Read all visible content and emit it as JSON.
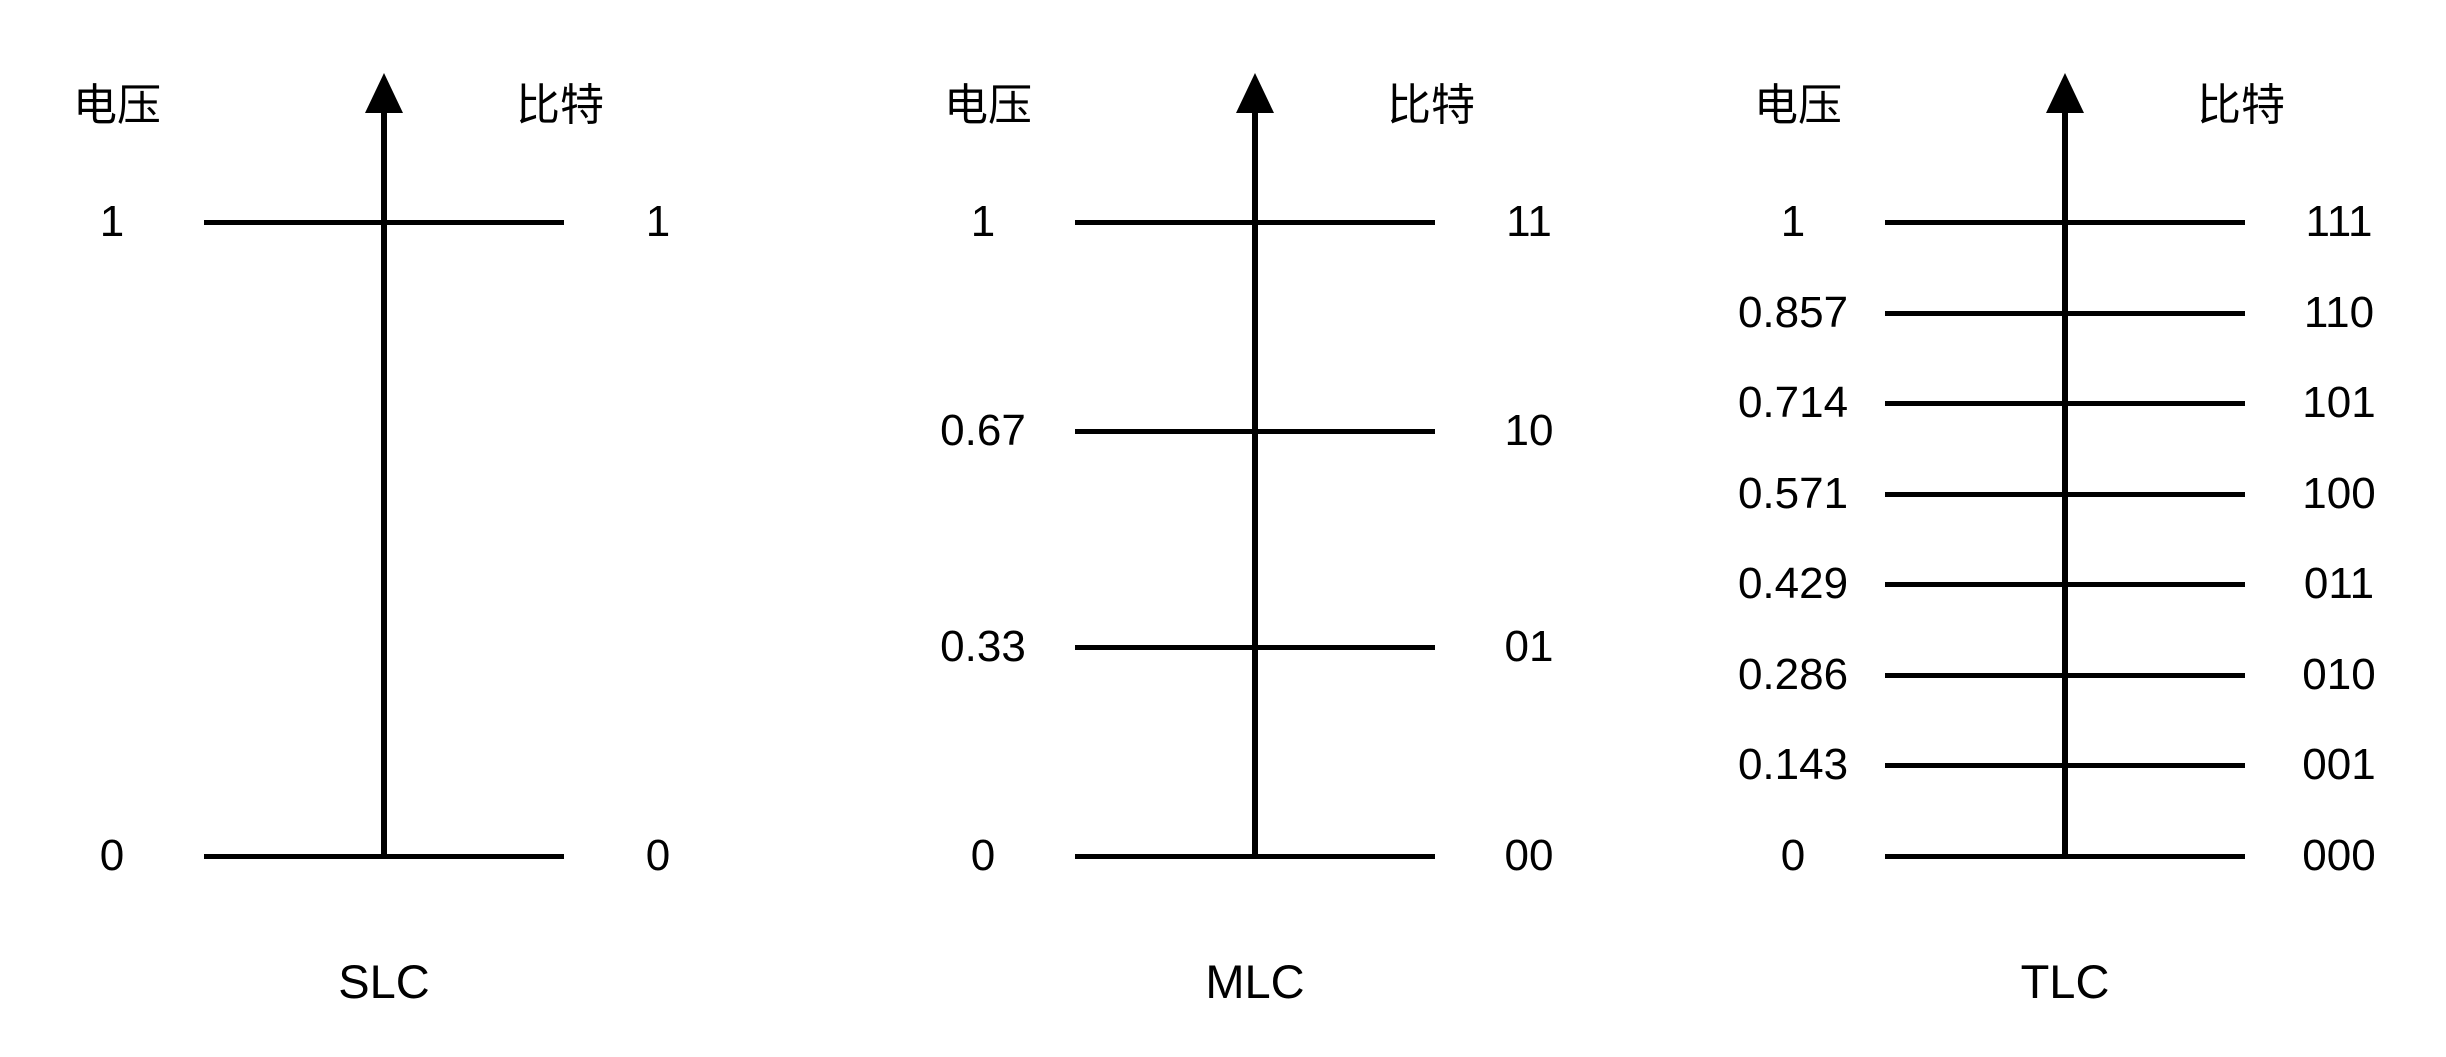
{
  "page": {
    "background_color": "#FFFFFF",
    "ink_color": "#000000"
  },
  "panels": [
    {
      "title": "SLC",
      "voltage_axis_label": "电压",
      "bits_axis_label": "比特",
      "levels": [
        {
          "value": 1,
          "voltage": "1",
          "bits": "1"
        },
        {
          "value": 0,
          "voltage": "0",
          "bits": "0"
        }
      ]
    },
    {
      "title": "MLC",
      "voltage_axis_label": "电压",
      "bits_axis_label": "比特",
      "levels": [
        {
          "value": 1,
          "voltage": "1",
          "bits": "11"
        },
        {
          "value": 0.67,
          "voltage": "0.67",
          "bits": "10"
        },
        {
          "value": 0.33,
          "voltage": "0.33",
          "bits": "01"
        },
        {
          "value": 0,
          "voltage": "0",
          "bits": "00"
        }
      ]
    },
    {
      "title": "TLC",
      "voltage_axis_label": "电压",
      "bits_axis_label": "比特",
      "levels": [
        {
          "value": 1,
          "voltage": "1",
          "bits": "111"
        },
        {
          "value": 0.857,
          "voltage": "0.857",
          "bits": "110"
        },
        {
          "value": 0.714,
          "voltage": "0.714",
          "bits": "101"
        },
        {
          "value": 0.571,
          "voltage": "0.571",
          "bits": "100"
        },
        {
          "value": 0.429,
          "voltage": "0.429",
          "bits": "011"
        },
        {
          "value": 0.286,
          "voltage": "0.286",
          "bits": "010"
        },
        {
          "value": 0.143,
          "voltage": "0.143",
          "bits": "001"
        },
        {
          "value": 0,
          "voltage": "0",
          "bits": "000"
        }
      ]
    }
  ],
  "chart_data": [
    {
      "type": "table",
      "title": "SLC",
      "ylabel": "电压",
      "ylim": [
        0,
        1
      ],
      "columns": [
        "电压",
        "比特"
      ],
      "rows": [
        [
          "1",
          "1"
        ],
        [
          "0",
          "0"
        ]
      ]
    },
    {
      "type": "table",
      "title": "MLC",
      "ylabel": "电压",
      "ylim": [
        0,
        1
      ],
      "columns": [
        "电压",
        "比特"
      ],
      "rows": [
        [
          "1",
          "11"
        ],
        [
          "0.67",
          "10"
        ],
        [
          "0.33",
          "01"
        ],
        [
          "0",
          "00"
        ]
      ]
    },
    {
      "type": "table",
      "title": "TLC",
      "ylabel": "电压",
      "ylim": [
        0,
        1
      ],
      "columns": [
        "电压",
        "比特"
      ],
      "rows": [
        [
          "1",
          "111"
        ],
        [
          "0.857",
          "110"
        ],
        [
          "0.714",
          "101"
        ],
        [
          "0.571",
          "100"
        ],
        [
          "0.429",
          "011"
        ],
        [
          "0.286",
          "010"
        ],
        [
          "0.143",
          "001"
        ],
        [
          "0",
          "000"
        ]
      ]
    }
  ]
}
